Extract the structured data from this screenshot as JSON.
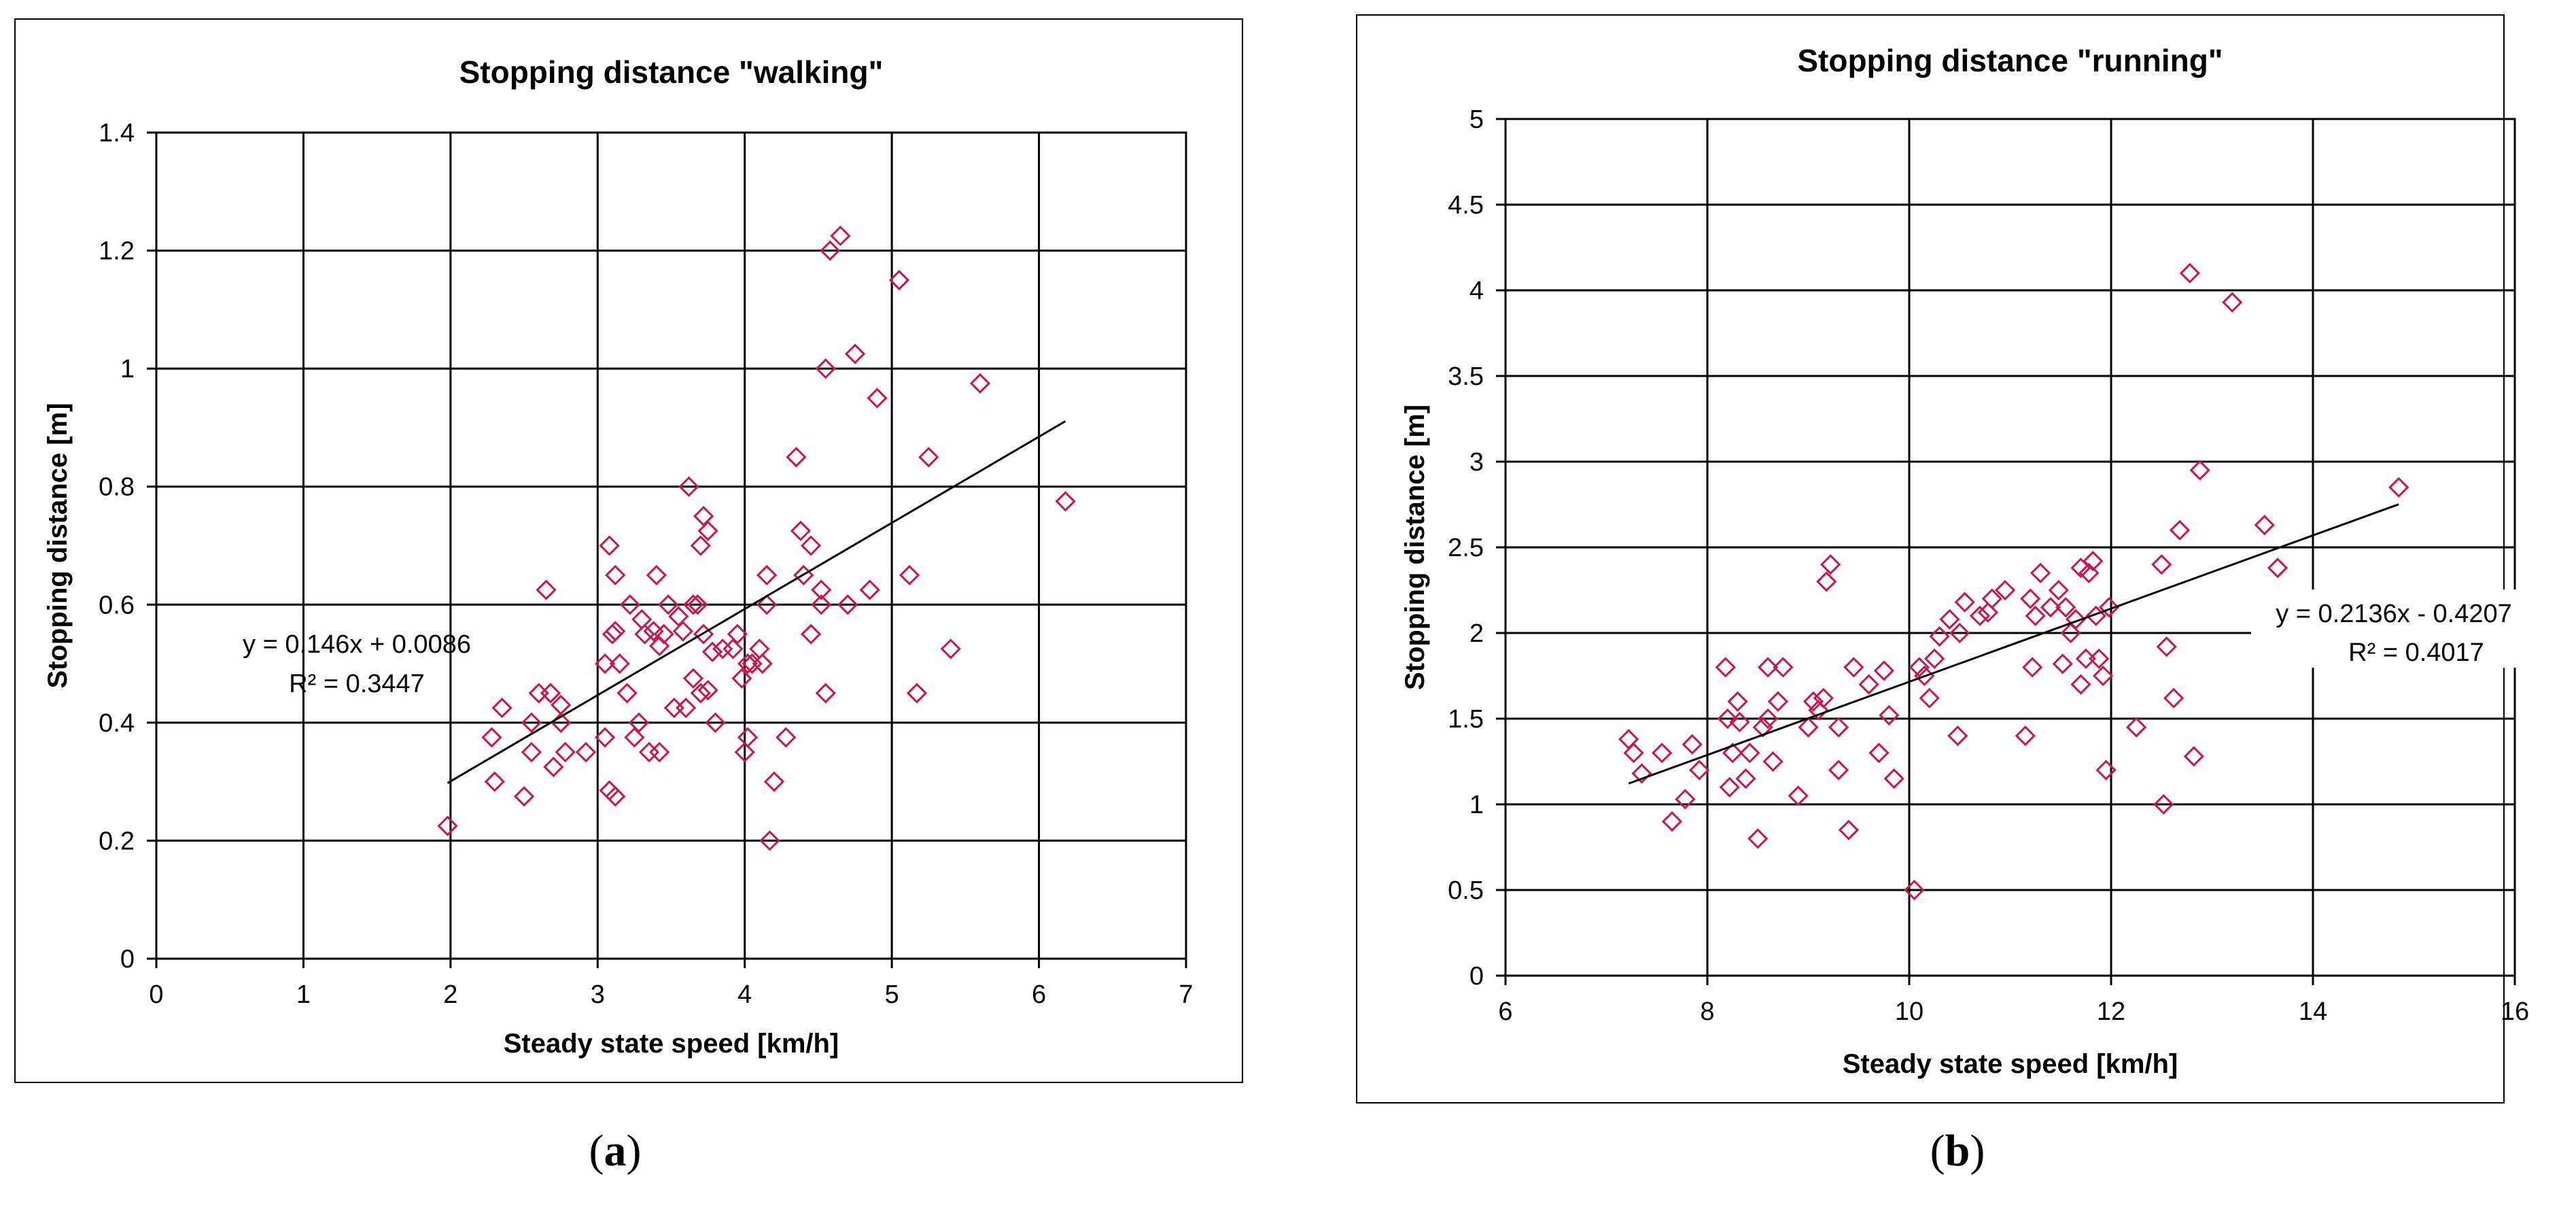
{
  "captions": [
    {
      "open": "(",
      "letter": "a",
      "close": ")"
    },
    {
      "open": "(",
      "letter": "b",
      "close": ")"
    }
  ],
  "colors": {
    "marker": "#c8174a",
    "grid": "#000000",
    "trend": "#000000",
    "frame": "#000000"
  },
  "chart_data": [
    {
      "type": "scatter",
      "title": "Stopping distance \"walking\"",
      "xlabel": "Steady state speed [km/h]",
      "ylabel": "Stopping distance [m]",
      "xlim": [
        0,
        7
      ],
      "ylim": [
        0,
        1.4
      ],
      "xticks": [
        0,
        1,
        2,
        3,
        4,
        5,
        6,
        7
      ],
      "yticks": [
        0,
        0.2,
        0.4,
        0.6,
        0.8,
        1,
        1.2,
        1.4
      ],
      "xtick_labels": [
        "0",
        "1",
        "2",
        "3",
        "4",
        "5",
        "6",
        "7"
      ],
      "ytick_labels": [
        "0",
        "0.2",
        "0.4",
        "0.6",
        "0.8",
        "1",
        "1.2",
        "1.4"
      ],
      "grid": true,
      "trendline": {
        "slope": 0.146,
        "intercept": 0.0086,
        "x_range": [
          1.98,
          6.18
        ],
        "equation": "y = 0.146x + 0.0086",
        "r2": "R² = 0.3447"
      },
      "points": [
        [
          1.98,
          0.225
        ],
        [
          2.28,
          0.375
        ],
        [
          2.3,
          0.3
        ],
        [
          2.35,
          0.425
        ],
        [
          2.5,
          0.275
        ],
        [
          2.55,
          0.35
        ],
        [
          2.55,
          0.4
        ],
        [
          2.6,
          0.45
        ],
        [
          2.65,
          0.625
        ],
        [
          2.68,
          0.45
        ],
        [
          2.7,
          0.325
        ],
        [
          2.75,
          0.4
        ],
        [
          2.75,
          0.43
        ],
        [
          2.78,
          0.35
        ],
        [
          2.92,
          0.35
        ],
        [
          3.05,
          0.375
        ],
        [
          3.05,
          0.5
        ],
        [
          3.08,
          0.7
        ],
        [
          3.08,
          0.285
        ],
        [
          3.1,
          0.55
        ],
        [
          3.12,
          0.555
        ],
        [
          3.12,
          0.65
        ],
        [
          3.12,
          0.275
        ],
        [
          3.15,
          0.5
        ],
        [
          3.2,
          0.45
        ],
        [
          3.22,
          0.6
        ],
        [
          3.25,
          0.375
        ],
        [
          3.28,
          0.4
        ],
        [
          3.3,
          0.575
        ],
        [
          3.32,
          0.55
        ],
        [
          3.35,
          0.35
        ],
        [
          3.38,
          0.555
        ],
        [
          3.4,
          0.65
        ],
        [
          3.42,
          0.35
        ],
        [
          3.42,
          0.53
        ],
        [
          3.45,
          0.55
        ],
        [
          3.48,
          0.6
        ],
        [
          3.52,
          0.425
        ],
        [
          3.55,
          0.58
        ],
        [
          3.58,
          0.555
        ],
        [
          3.6,
          0.425
        ],
        [
          3.62,
          0.8
        ],
        [
          3.65,
          0.6
        ],
        [
          3.65,
          0.475
        ],
        [
          3.68,
          0.6
        ],
        [
          3.7,
          0.7
        ],
        [
          3.7,
          0.45
        ],
        [
          3.72,
          0.75
        ],
        [
          3.72,
          0.55
        ],
        [
          3.75,
          0.725
        ],
        [
          3.75,
          0.455
        ],
        [
          3.78,
          0.52
        ],
        [
          3.8,
          0.4
        ],
        [
          3.85,
          0.525
        ],
        [
          3.92,
          0.525
        ],
        [
          3.95,
          0.55
        ],
        [
          3.98,
          0.475
        ],
        [
          4.0,
          0.35
        ],
        [
          4.02,
          0.5
        ],
        [
          4.02,
          0.375
        ],
        [
          4.05,
          0.5
        ],
        [
          4.1,
          0.525
        ],
        [
          4.12,
          0.5
        ],
        [
          4.15,
          0.6
        ],
        [
          4.15,
          0.65
        ],
        [
          4.17,
          0.2
        ],
        [
          4.2,
          0.3
        ],
        [
          4.28,
          0.375
        ],
        [
          4.35,
          0.85
        ],
        [
          4.38,
          0.725
        ],
        [
          4.4,
          0.65
        ],
        [
          4.45,
          0.55
        ],
        [
          4.45,
          0.7
        ],
        [
          4.52,
          0.625
        ],
        [
          4.52,
          0.6
        ],
        [
          4.55,
          1.0
        ],
        [
          4.55,
          0.45
        ],
        [
          4.58,
          1.2
        ],
        [
          4.65,
          1.225
        ],
        [
          4.7,
          0.6
        ],
        [
          4.75,
          1.025
        ],
        [
          4.85,
          0.625
        ],
        [
          4.9,
          0.95
        ],
        [
          5.05,
          1.15
        ],
        [
          5.12,
          0.65
        ],
        [
          5.17,
          0.45
        ],
        [
          5.25,
          0.85
        ],
        [
          5.4,
          0.525
        ],
        [
          5.6,
          0.975
        ],
        [
          6.18,
          0.775
        ]
      ]
    },
    {
      "type": "scatter",
      "title": "Stopping distance \"running\"",
      "xlabel": "Steady state speed [km/h]",
      "ylabel": "Stopping distance [m]",
      "xlim": [
        6,
        16
      ],
      "ylim": [
        0,
        5
      ],
      "xticks": [
        6,
        8,
        10,
        12,
        14,
        16
      ],
      "yticks": [
        0,
        0.5,
        1,
        1.5,
        2,
        2.5,
        3,
        3.5,
        4,
        4.5,
        5
      ],
      "xtick_labels": [
        "6",
        "8",
        "10",
        "12",
        "14",
        "16"
      ],
      "ytick_labels": [
        "0",
        "0.5",
        "1",
        "1.5",
        "2",
        "2.5",
        "3",
        "3.5",
        "4",
        "4.5",
        "5"
      ],
      "grid": true,
      "trendline": {
        "slope": 0.2136,
        "intercept": -0.4207,
        "x_range": [
          7.22,
          14.85
        ],
        "equation": "y = 0.2136x - 0.4207",
        "r2": "R² = 0.4017"
      },
      "points": [
        [
          7.22,
          1.38
        ],
        [
          7.27,
          1.3
        ],
        [
          7.35,
          1.18
        ],
        [
          7.55,
          1.3
        ],
        [
          7.65,
          0.9
        ],
        [
          7.78,
          1.03
        ],
        [
          7.85,
          1.35
        ],
        [
          7.92,
          1.2
        ],
        [
          8.18,
          1.8
        ],
        [
          8.2,
          1.5
        ],
        [
          8.22,
          1.1
        ],
        [
          8.25,
          1.3
        ],
        [
          8.3,
          1.6
        ],
        [
          8.32,
          1.48
        ],
        [
          8.38,
          1.15
        ],
        [
          8.42,
          1.3
        ],
        [
          8.5,
          0.8
        ],
        [
          8.55,
          1.45
        ],
        [
          8.6,
          1.8
        ],
        [
          8.6,
          1.5
        ],
        [
          8.65,
          1.25
        ],
        [
          8.7,
          1.6
        ],
        [
          8.75,
          1.8
        ],
        [
          8.9,
          1.05
        ],
        [
          9.0,
          1.45
        ],
        [
          9.05,
          1.6
        ],
        [
          9.1,
          1.55
        ],
        [
          9.15,
          1.62
        ],
        [
          9.18,
          2.3
        ],
        [
          9.22,
          2.4
        ],
        [
          9.3,
          1.45
        ],
        [
          9.3,
          1.2
        ],
        [
          9.4,
          0.85
        ],
        [
          9.45,
          1.8
        ],
        [
          9.6,
          1.7
        ],
        [
          9.7,
          1.3
        ],
        [
          9.75,
          1.78
        ],
        [
          9.8,
          1.52
        ],
        [
          9.85,
          1.15
        ],
        [
          10.05,
          0.5
        ],
        [
          10.1,
          1.8
        ],
        [
          10.15,
          1.75
        ],
        [
          10.2,
          1.62
        ],
        [
          10.25,
          1.85
        ],
        [
          10.3,
          1.98
        ],
        [
          10.4,
          2.08
        ],
        [
          10.48,
          1.4
        ],
        [
          10.5,
          2.0
        ],
        [
          10.55,
          2.18
        ],
        [
          10.7,
          2.1
        ],
        [
          10.78,
          2.12
        ],
        [
          10.82,
          2.2
        ],
        [
          10.95,
          2.25
        ],
        [
          11.15,
          1.4
        ],
        [
          11.2,
          2.2
        ],
        [
          11.22,
          1.8
        ],
        [
          11.25,
          2.1
        ],
        [
          11.3,
          2.35
        ],
        [
          11.4,
          2.15
        ],
        [
          11.48,
          2.25
        ],
        [
          11.52,
          1.82
        ],
        [
          11.55,
          2.15
        ],
        [
          11.6,
          2.0
        ],
        [
          11.65,
          2.08
        ],
        [
          11.7,
          2.38
        ],
        [
          11.7,
          1.7
        ],
        [
          11.75,
          1.85
        ],
        [
          11.78,
          2.35
        ],
        [
          11.82,
          2.42
        ],
        [
          11.85,
          2.1
        ],
        [
          11.88,
          1.85
        ],
        [
          11.92,
          1.75
        ],
        [
          11.95,
          1.2
        ],
        [
          11.98,
          2.15
        ],
        [
          12.25,
          1.45
        ],
        [
          12.5,
          2.4
        ],
        [
          12.52,
          1.0
        ],
        [
          12.55,
          1.92
        ],
        [
          12.62,
          1.62
        ],
        [
          12.68,
          2.6
        ],
        [
          12.78,
          4.1
        ],
        [
          12.82,
          1.28
        ],
        [
          12.88,
          2.95
        ],
        [
          13.52,
          2.63
        ],
        [
          13.65,
          2.38
        ],
        [
          13.2,
          3.93
        ],
        [
          14.85,
          2.85
        ]
      ]
    }
  ]
}
